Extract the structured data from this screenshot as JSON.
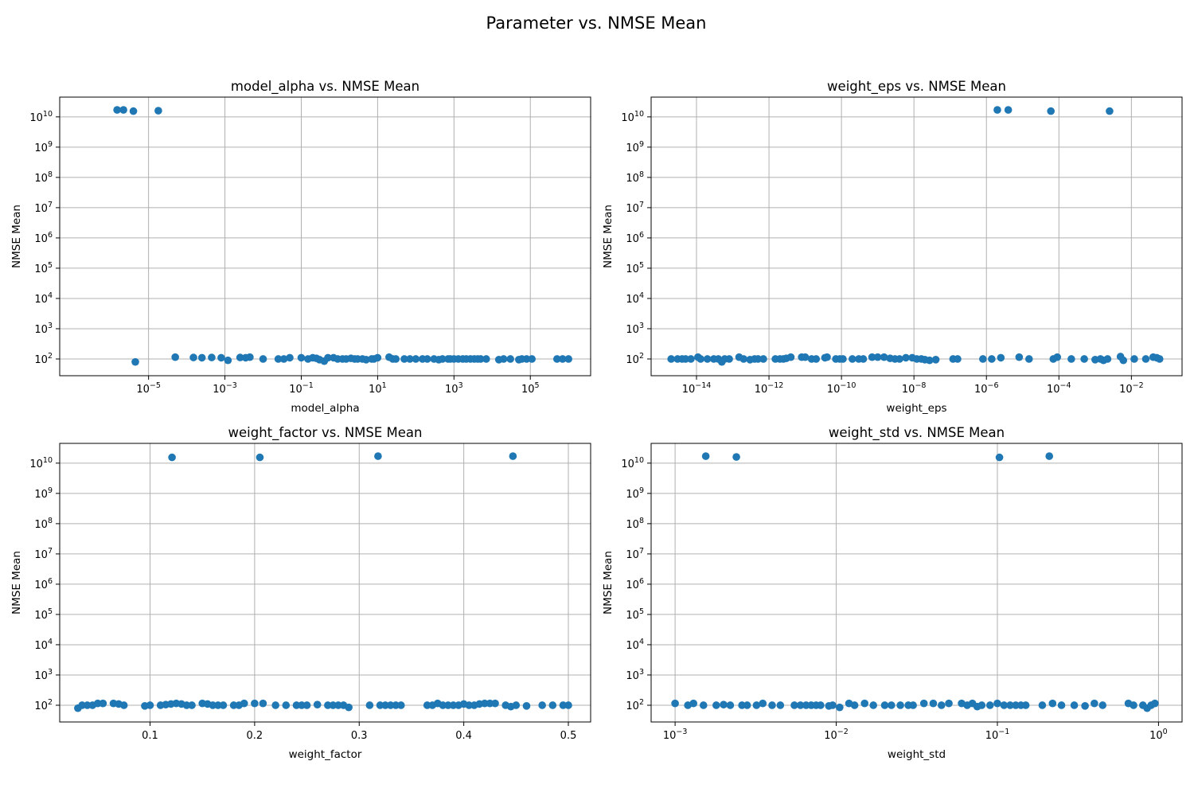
{
  "figure": {
    "title": "Parameter vs. NMSE Mean"
  },
  "colors": {
    "marker": "#1f77b4",
    "grid": "#b0b0b0"
  },
  "chart_data": [
    {
      "type": "scatter",
      "title": "model_alpha vs. NMSE Mean",
      "xlabel": "model_alpha",
      "ylabel": "NMSE Mean",
      "xscale": "log",
      "yscale": "log",
      "xlim": [
        4.7e-08,
        3800000.0
      ],
      "ylim": [
        28,
        45000000000.0
      ],
      "grid": true,
      "xticks": [
        1e-05,
        0.001,
        0.1,
        10.0,
        1000.0,
        100000.0
      ],
      "xtick_labels": [
        [
          "10",
          "−5"
        ],
        [
          "10",
          "−3"
        ],
        [
          "10",
          "−1"
        ],
        [
          "10",
          "1"
        ],
        [
          "10",
          "3"
        ],
        [
          "10",
          "5"
        ]
      ],
      "yticks": [
        100.0,
        1000.0,
        10000.0,
        100000.0,
        1000000.0,
        10000000.0,
        100000000.0,
        1000000000.0,
        10000000000.0
      ],
      "ytick_labels": [
        [
          "10",
          "2"
        ],
        [
          "10",
          "3"
        ],
        [
          "10",
          "4"
        ],
        [
          "10",
          "5"
        ],
        [
          "10",
          "6"
        ],
        [
          "10",
          "7"
        ],
        [
          "10",
          "8"
        ],
        [
          "10",
          "9"
        ],
        [
          "10",
          "10"
        ]
      ],
      "x": [
        1.5e-06,
        2.2e-06,
        4e-06,
        1.8e-05,
        4.5e-06,
        5e-05,
        0.00015,
        0.00025,
        0.00045,
        0.0008,
        0.0012,
        0.0025,
        0.0035,
        0.0045,
        0.01,
        0.025,
        0.035,
        0.05,
        0.1,
        0.15,
        0.2,
        0.25,
        0.3,
        0.4,
        0.5,
        0.7,
        0.9,
        1.2,
        1.5,
        2,
        2.5,
        3,
        4,
        5,
        7,
        8,
        10,
        20,
        25,
        30,
        50,
        70,
        100,
        150,
        200,
        300,
        400,
        500,
        700,
        800,
        1000,
        1300,
        1700,
        2100,
        2700,
        3400,
        4200,
        5000,
        7000,
        15000,
        20000,
        30000,
        50000,
        60000,
        80000,
        110000,
        500000,
        700000,
        1000000
      ],
      "y": [
        17000000000.0,
        17000000000.0,
        15500000000.0,
        16000000000.0,
        80,
        115,
        112,
        110,
        112,
        110,
        90,
        112,
        110,
        115,
        100,
        100,
        100,
        110,
        110,
        100,
        110,
        105,
        95,
        85,
        110,
        110,
        100,
        100,
        100,
        105,
        100,
        100,
        100,
        95,
        100,
        100,
        110,
        115,
        100,
        100,
        100,
        100,
        100,
        100,
        100,
        100,
        95,
        100,
        100,
        100,
        100,
        100,
        100,
        100,
        100,
        100,
        100,
        100,
        100,
        95,
        100,
        100,
        95,
        100,
        100,
        100,
        100,
        100,
        100
      ]
    },
    {
      "type": "scatter",
      "title": "weight_eps vs. NMSE Mean",
      "xlabel": "weight_eps",
      "ylabel": "NMSE Mean",
      "xscale": "log",
      "yscale": "log",
      "xlim": [
        5.6e-16,
        0.25
      ],
      "ylim": [
        28,
        45000000000.0
      ],
      "grid": true,
      "xticks": [
        1e-14,
        1e-12,
        1e-10,
        1e-08,
        1e-06,
        0.0001,
        0.01
      ],
      "xtick_labels": [
        [
          "10",
          "−14"
        ],
        [
          "10",
          "−12"
        ],
        [
          "10",
          "−10"
        ],
        [
          "10",
          "−8"
        ],
        [
          "10",
          "−6"
        ],
        [
          "10",
          "−4"
        ],
        [
          "10",
          "−2"
        ]
      ],
      "yticks": [
        100.0,
        1000.0,
        10000.0,
        100000.0,
        1000000.0,
        10000000.0,
        100000000.0,
        1000000000.0,
        10000000000.0
      ],
      "ytick_labels": [
        [
          "10",
          "2"
        ],
        [
          "10",
          "3"
        ],
        [
          "10",
          "4"
        ],
        [
          "10",
          "5"
        ],
        [
          "10",
          "6"
        ],
        [
          "10",
          "7"
        ],
        [
          "10",
          "8"
        ],
        [
          "10",
          "9"
        ],
        [
          "10",
          "10"
        ]
      ],
      "x": [
        2e-15,
        3e-15,
        4e-15,
        5e-15,
        7e-15,
        1.1e-14,
        1.3e-14,
        2e-14,
        3e-14,
        4e-14,
        5e-14,
        6e-14,
        8e-14,
        1.5e-13,
        2e-13,
        3e-13,
        4e-13,
        5e-13,
        7e-13,
        1.5e-12,
        2e-12,
        2.5e-12,
        3e-12,
        4e-12,
        8e-12,
        1e-11,
        1.5e-11,
        2e-11,
        3.5e-11,
        4e-11,
        7e-11,
        9e-11,
        1.1e-10,
        2e-10,
        3e-10,
        4e-10,
        7e-10,
        1e-09,
        1.5e-09,
        2.2e-09,
        3e-09,
        4e-09,
        6e-09,
        9e-09,
        1.2e-08,
        1.6e-08,
        2e-08,
        2.7e-08,
        4e-08,
        1.2e-07,
        1.6e-07,
        8e-07,
        1.4e-06,
        2e-06,
        2.5e-06,
        4e-06,
        8e-06,
        1.5e-05,
        6e-05,
        7e-05,
        9e-05,
        0.00022,
        0.0005,
        0.001,
        0.0014,
        0.0017,
        0.0022,
        0.0025,
        0.005,
        0.006,
        0.012,
        0.025,
        0.04,
        0.05,
        0.06
      ],
      "y": [
        100,
        100,
        100,
        100,
        100,
        115,
        100,
        100,
        100,
        100,
        80,
        100,
        100,
        115,
        100,
        95,
        100,
        100,
        100,
        100,
        100,
        100,
        105,
        115,
        115,
        115,
        100,
        100,
        110,
        115,
        100,
        100,
        100,
        100,
        100,
        100,
        115,
        115,
        115,
        105,
        100,
        100,
        110,
        110,
        100,
        100,
        95,
        90,
        95,
        100,
        100,
        100,
        100,
        17000000000.0,
        110,
        17000000000.0,
        115,
        100,
        15500000000.0,
        100,
        115,
        100,
        100,
        95,
        100,
        90,
        100,
        15500000000.0,
        120,
        90,
        100,
        100,
        115,
        110,
        100
      ]
    },
    {
      "type": "scatter",
      "title": "weight_factor vs. NMSE Mean",
      "xlabel": "weight_factor",
      "ylabel": "NMSE Mean",
      "xscale": "linear",
      "yscale": "log",
      "xlim": [
        0.0136,
        0.5213
      ],
      "ylim": [
        28,
        45000000000.0
      ],
      "grid": true,
      "xticks": [
        0.1,
        0.2,
        0.3,
        0.4,
        0.5
      ],
      "xtick_labels": [
        [
          "0.1",
          ""
        ],
        [
          "0.2",
          ""
        ],
        [
          "0.3",
          ""
        ],
        [
          "0.4",
          ""
        ],
        [
          "0.5",
          ""
        ]
      ],
      "yticks": [
        100.0,
        1000.0,
        10000.0,
        100000.0,
        1000000.0,
        10000000.0,
        100000000.0,
        1000000000.0,
        10000000000.0
      ],
      "ytick_labels": [
        [
          "10",
          "2"
        ],
        [
          "10",
          "3"
        ],
        [
          "10",
          "4"
        ],
        [
          "10",
          "5"
        ],
        [
          "10",
          "6"
        ],
        [
          "10",
          "7"
        ],
        [
          "10",
          "8"
        ],
        [
          "10",
          "9"
        ],
        [
          "10",
          "10"
        ]
      ],
      "x": [
        0.031,
        0.035,
        0.04,
        0.045,
        0.05,
        0.055,
        0.065,
        0.07,
        0.075,
        0.095,
        0.1,
        0.11,
        0.115,
        0.12,
        0.121,
        0.125,
        0.13,
        0.135,
        0.14,
        0.15,
        0.155,
        0.16,
        0.165,
        0.17,
        0.18,
        0.185,
        0.19,
        0.2,
        0.205,
        0.208,
        0.22,
        0.23,
        0.24,
        0.245,
        0.25,
        0.26,
        0.27,
        0.275,
        0.28,
        0.285,
        0.29,
        0.31,
        0.318,
        0.32,
        0.325,
        0.33,
        0.335,
        0.34,
        0.365,
        0.37,
        0.375,
        0.38,
        0.385,
        0.39,
        0.395,
        0.4,
        0.405,
        0.41,
        0.415,
        0.42,
        0.425,
        0.43,
        0.44,
        0.445,
        0.447,
        0.45,
        0.46,
        0.475,
        0.485,
        0.495,
        0.5
      ],
      "y": [
        80,
        100,
        100,
        100,
        115,
        115,
        115,
        110,
        100,
        95,
        100,
        100,
        105,
        110,
        15500000000.0,
        115,
        110,
        100,
        100,
        115,
        110,
        100,
        100,
        100,
        100,
        100,
        115,
        115,
        15500000000.0,
        115,
        100,
        100,
        100,
        100,
        100,
        105,
        100,
        100,
        100,
        100,
        85,
        100,
        17000000000.0,
        100,
        100,
        100,
        100,
        100,
        100,
        100,
        115,
        100,
        100,
        100,
        100,
        110,
        100,
        100,
        110,
        115,
        115,
        115,
        100,
        90,
        17000000000.0,
        100,
        95,
        100,
        100,
        100,
        100
      ]
    },
    {
      "type": "scatter",
      "title": "weight_std vs. NMSE Mean",
      "xlabel": "weight_std",
      "ylabel": "NMSE Mean",
      "xscale": "log",
      "yscale": "log",
      "xlim": [
        0.00071,
        1.4
      ],
      "ylim": [
        28,
        45000000000.0
      ],
      "grid": true,
      "xticks": [
        0.001,
        0.01,
        0.1,
        1.0
      ],
      "xtick_labels": [
        [
          "10",
          "−3"
        ],
        [
          "10",
          "−2"
        ],
        [
          "10",
          "−1"
        ],
        [
          "10",
          "0"
        ]
      ],
      "yticks": [
        100.0,
        1000.0,
        10000.0,
        100000.0,
        1000000.0,
        10000000.0,
        100000000.0,
        1000000000.0,
        10000000000.0
      ],
      "ytick_labels": [
        [
          "10",
          "2"
        ],
        [
          "10",
          "3"
        ],
        [
          "10",
          "4"
        ],
        [
          "10",
          "5"
        ],
        [
          "10",
          "6"
        ],
        [
          "10",
          "7"
        ],
        [
          "10",
          "8"
        ],
        [
          "10",
          "9"
        ],
        [
          "10",
          "10"
        ]
      ],
      "x": [
        0.001,
        0.0012,
        0.0013,
        0.0015,
        0.00155,
        0.0018,
        0.002,
        0.0022,
        0.0024,
        0.0026,
        0.0028,
        0.0032,
        0.0035,
        0.004,
        0.0045,
        0.0055,
        0.006,
        0.0065,
        0.007,
        0.0075,
        0.008,
        0.009,
        0.0095,
        0.0105,
        0.012,
        0.013,
        0.015,
        0.017,
        0.02,
        0.022,
        0.025,
        0.028,
        0.03,
        0.035,
        0.04,
        0.045,
        0.05,
        0.06,
        0.065,
        0.07,
        0.075,
        0.08,
        0.09,
        0.1,
        0.103,
        0.11,
        0.12,
        0.13,
        0.14,
        0.15,
        0.19,
        0.21,
        0.22,
        0.25,
        0.3,
        0.35,
        0.4,
        0.45,
        0.65,
        0.7,
        0.8,
        0.85,
        0.9,
        0.95
      ],
      "y": [
        115,
        100,
        115,
        100,
        17000000000.0,
        100,
        105,
        100,
        16000000000.0,
        100,
        100,
        100,
        115,
        100,
        100,
        100,
        100,
        100,
        100,
        100,
        100,
        95,
        100,
        85,
        115,
        100,
        115,
        100,
        100,
        100,
        100,
        100,
        100,
        115,
        115,
        100,
        115,
        115,
        100,
        115,
        90,
        100,
        100,
        115,
        15500000000.0,
        100,
        100,
        100,
        100,
        100,
        100,
        17000000000.0,
        115,
        100,
        100,
        95,
        115,
        100,
        115,
        100,
        100,
        80,
        100,
        115
      ]
    }
  ]
}
